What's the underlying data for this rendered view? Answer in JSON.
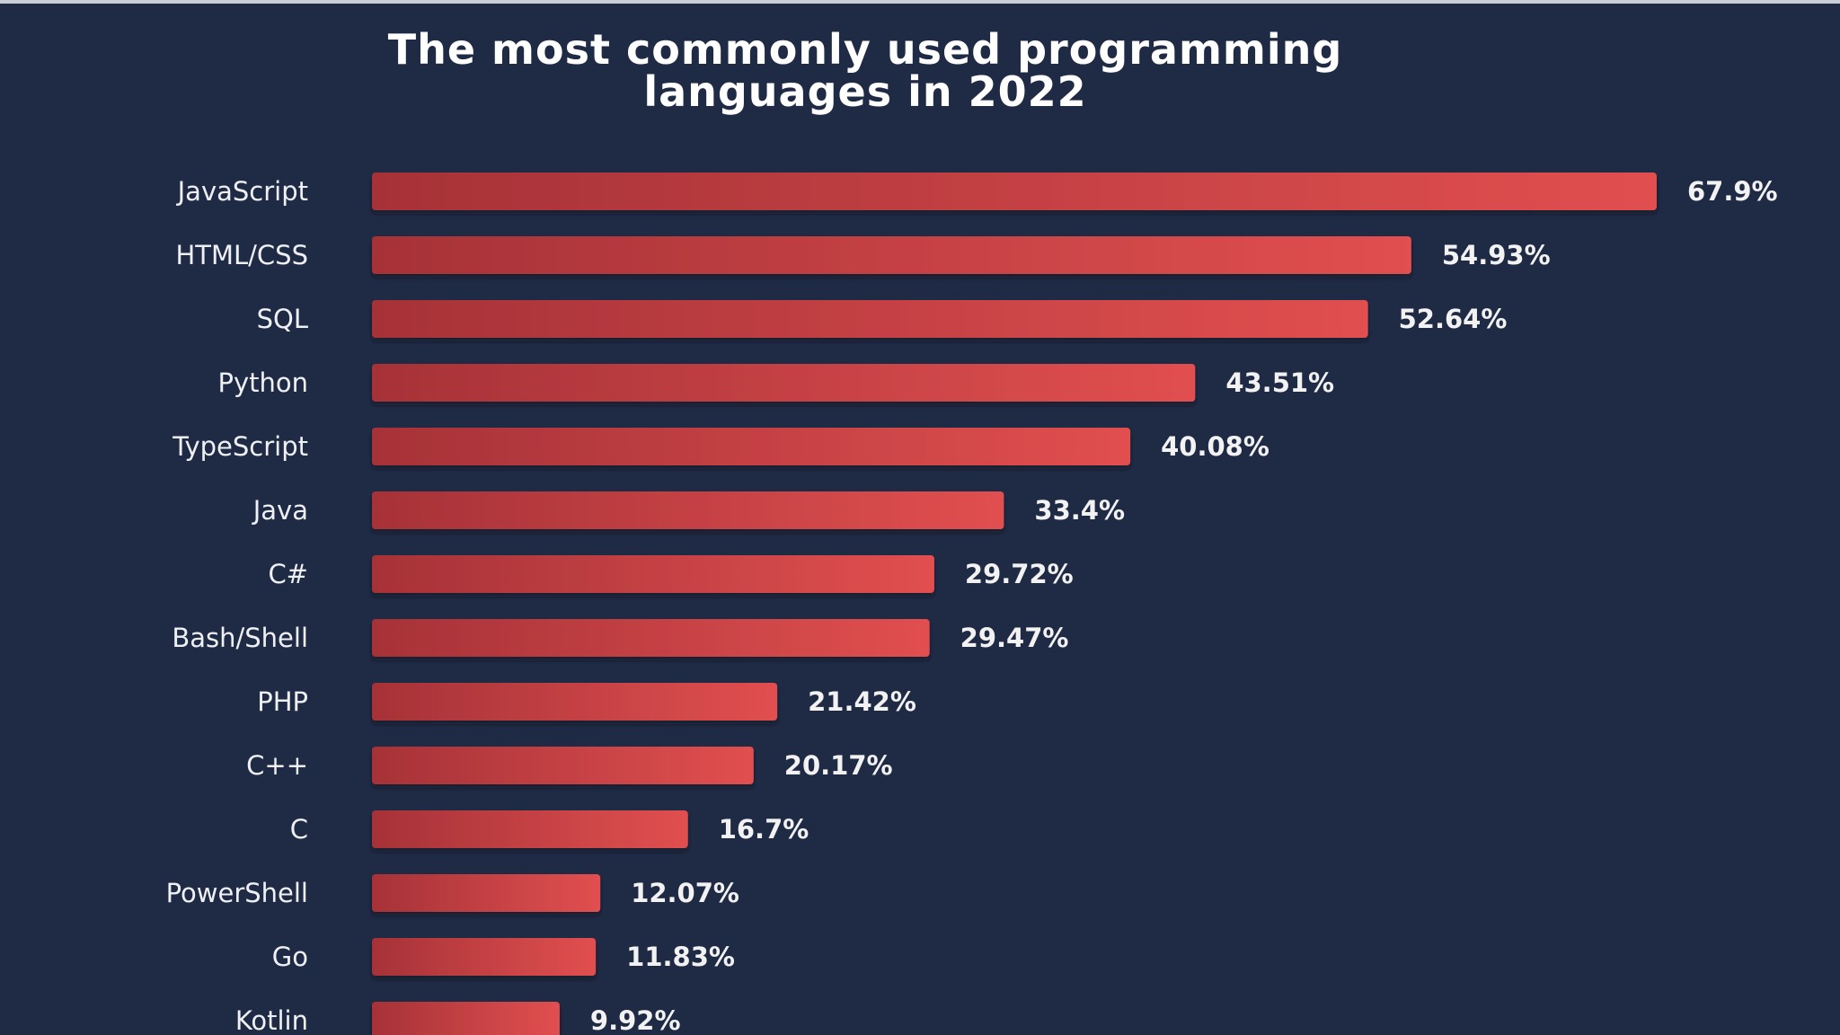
{
  "chart_data": {
    "type": "bar",
    "orientation": "horizontal",
    "title_lines": [
      "The most commonly used programming",
      "languages in 2022"
    ],
    "categories": [
      "JavaScript",
      "HTML/CSS",
      "SQL",
      "Python",
      "TypeScript",
      "Java",
      "C#",
      "Bash/Shell",
      "PHP",
      "C++",
      "C",
      "PowerShell",
      "Go",
      "Kotlin"
    ],
    "values": [
      67.9,
      54.93,
      52.64,
      43.51,
      40.08,
      33.4,
      29.72,
      29.47,
      21.42,
      20.17,
      16.7,
      12.07,
      11.83,
      9.92
    ],
    "value_labels": [
      "67.9%",
      "54.93%",
      "52.64%",
      "43.51%",
      "40.08%",
      "33.4%",
      "29.72%",
      "29.47%",
      "21.42%",
      "20.17%",
      "16.7%",
      "12.07%",
      "11.83%",
      "9.92%"
    ],
    "xlabel": "",
    "ylabel": "",
    "xlim": [
      0,
      67.9
    ],
    "grid": false,
    "legend": "none",
    "colors": {
      "background": "#1f2a44",
      "bar_dark": "#a63237",
      "bar_light": "#e14f50",
      "text": "#eef0f4"
    }
  }
}
